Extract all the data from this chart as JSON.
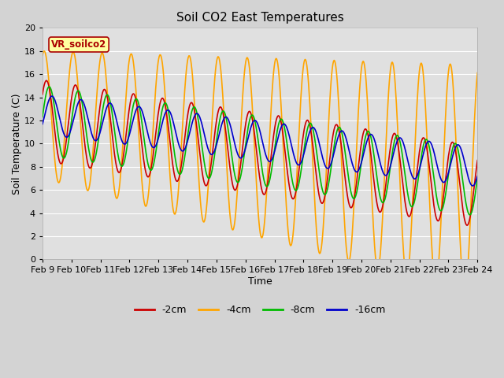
{
  "title": "Soil CO2 East Temperatures",
  "xlabel": "Time",
  "ylabel": "Soil Temperature (C)",
  "ylim": [
    0,
    20
  ],
  "background_color": "#d3d3d3",
  "plot_bg_color": "#e0e0e0",
  "grid_color": "#ffffff",
  "series": {
    "-2cm": {
      "color": "#cc0000",
      "lw": 1.2
    },
    "-4cm": {
      "color": "#ffa500",
      "lw": 1.2
    },
    "-8cm": {
      "color": "#00bb00",
      "lw": 1.2
    },
    "-16cm": {
      "color": "#0000cc",
      "lw": 1.2
    }
  },
  "xtick_labels": [
    "Feb 9",
    "Feb 10",
    "Feb 11",
    "Feb 12",
    "Feb 13",
    "Feb 14",
    "Feb 15",
    "Feb 16",
    "Feb 17",
    "Feb 18",
    "Feb 19",
    "Feb 20",
    "Feb 21",
    "Feb 22",
    "Feb 23",
    "Feb 24"
  ],
  "annotation_text": "VR_soilco2",
  "annotation_color": "#aa0000",
  "annotation_bg": "#ffffa0",
  "annotation_border": "#aa0000",
  "figsize": [
    6.4,
    4.8
  ],
  "dpi": 100
}
